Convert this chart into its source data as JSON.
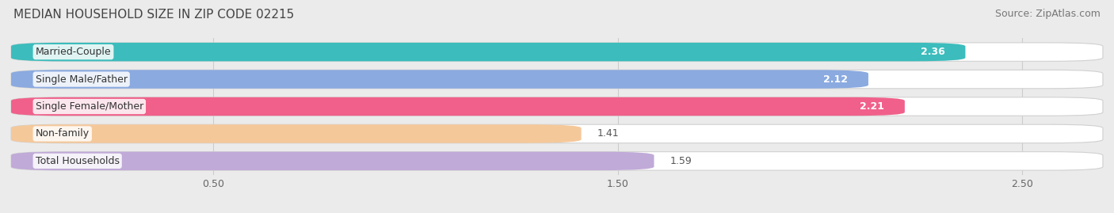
{
  "title": "MEDIAN HOUSEHOLD SIZE IN ZIP CODE 02215",
  "source": "Source: ZipAtlas.com",
  "categories": [
    "Married-Couple",
    "Single Male/Father",
    "Single Female/Mother",
    "Non-family",
    "Total Households"
  ],
  "values": [
    2.36,
    2.12,
    2.21,
    1.41,
    1.59
  ],
  "bar_colors": [
    "#3cbcbc",
    "#8aaae0",
    "#f0608a",
    "#f5c89a",
    "#c0aad8"
  ],
  "label_colors_inside": [
    "white",
    "white",
    "white",
    "black",
    "black"
  ],
  "xlim": [
    0.0,
    2.7
  ],
  "xticks": [
    0.5,
    1.5,
    2.5
  ],
  "title_fontsize": 11,
  "source_fontsize": 9,
  "label_fontsize": 9,
  "cat_fontsize": 9,
  "tick_fontsize": 9,
  "bar_height": 0.68,
  "figsize": [
    14.06,
    2.69
  ],
  "dpi": 100
}
